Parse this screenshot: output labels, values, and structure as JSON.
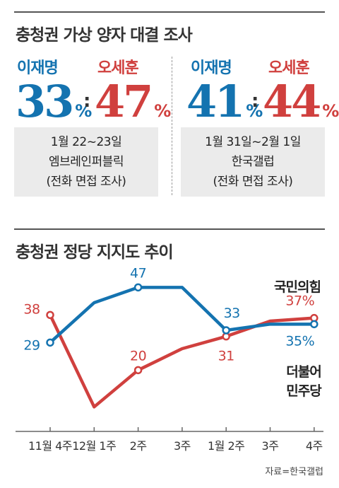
{
  "survey": {
    "title": "충청권 가상 양자 대결 조사",
    "polls": [
      {
        "candidate_a": "이재명",
        "value_a": "33",
        "candidate_b": "오세훈",
        "value_b": "47",
        "pct": "%",
        "colon": ":",
        "date": "1월 22~23일",
        "pollster": "엠브레인퍼블릭",
        "method": "(전화 면접 조사)"
      },
      {
        "candidate_a": "이재명",
        "value_a": "41",
        "candidate_b": "오세훈",
        "value_b": "44",
        "pct": "%",
        "colon": ":",
        "date": "1월 31일~2월 1일",
        "pollster": "한국갤럽",
        "method": "(전화 면접 조사)"
      }
    ]
  },
  "trend": {
    "title": "충청권 정당 지지도 추이",
    "source": "자료=한국갤럽"
  },
  "colors": {
    "blue": "#1473b0",
    "red": "#d0403e"
  },
  "chart_data": {
    "type": "line",
    "title": "충청권 정당 지지도 추이",
    "categories": [
      "11월 4주",
      "12월 1주",
      "2주",
      "3주",
      "1월 2주",
      "3주",
      "4주"
    ],
    "ylim": [
      0,
      60
    ],
    "grid": false,
    "series": [
      {
        "name": "국민의힘",
        "color": "#d0403e",
        "values": [
          38,
          8,
          20,
          27,
          31,
          36,
          37
        ],
        "labels": [
          "38",
          "",
          "20",
          "",
          "31",
          "",
          "37%"
        ]
      },
      {
        "name": "더불어 민주당",
        "color": "#1473b0",
        "values": [
          29,
          42,
          47,
          47,
          33,
          35,
          35
        ],
        "labels": [
          "29",
          "",
          "47",
          "",
          "33",
          "",
          "35%"
        ]
      }
    ]
  }
}
